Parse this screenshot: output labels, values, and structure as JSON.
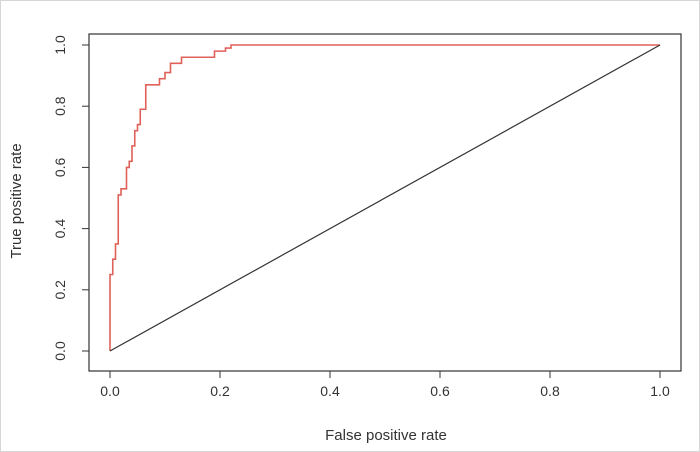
{
  "chart_data": {
    "type": "line",
    "title": "",
    "xlabel": "False positive rate",
    "ylabel": "True positive rate",
    "xlim": [
      0.0,
      1.0
    ],
    "ylim": [
      0.0,
      1.0
    ],
    "x_ticks": [
      "0.0",
      "0.2",
      "0.4",
      "0.6",
      "0.8",
      "1.0"
    ],
    "y_ticks": [
      "0.0",
      "0.2",
      "0.4",
      "0.6",
      "0.8",
      "1.0"
    ],
    "grid": false,
    "legend": "none",
    "series": [
      {
        "color": "#e0605a",
        "step": true,
        "x": [
          0.0,
          0.0,
          0.005,
          0.005,
          0.01,
          0.01,
          0.015,
          0.015,
          0.02,
          0.02,
          0.03,
          0.03,
          0.035,
          0.035,
          0.04,
          0.04,
          0.045,
          0.045,
          0.05,
          0.05,
          0.055,
          0.055,
          0.065,
          0.065,
          0.09,
          0.09,
          0.1,
          0.1,
          0.11,
          0.11,
          0.13,
          0.13,
          0.19,
          0.19,
          0.21,
          0.21,
          0.22,
          0.22,
          1.0
        ],
        "y": [
          0.0,
          0.25,
          0.25,
          0.3,
          0.3,
          0.35,
          0.35,
          0.51,
          0.51,
          0.53,
          0.53,
          0.6,
          0.6,
          0.62,
          0.62,
          0.67,
          0.67,
          0.72,
          0.72,
          0.74,
          0.74,
          0.79,
          0.79,
          0.87,
          0.87,
          0.89,
          0.89,
          0.91,
          0.91,
          0.94,
          0.94,
          0.96,
          0.96,
          0.98,
          0.98,
          0.99,
          0.99,
          1.0,
          1.0
        ]
      },
      {
        "color": "#333333",
        "x": [
          0.0,
          1.0
        ],
        "y": [
          0.0,
          1.0
        ]
      }
    ]
  }
}
